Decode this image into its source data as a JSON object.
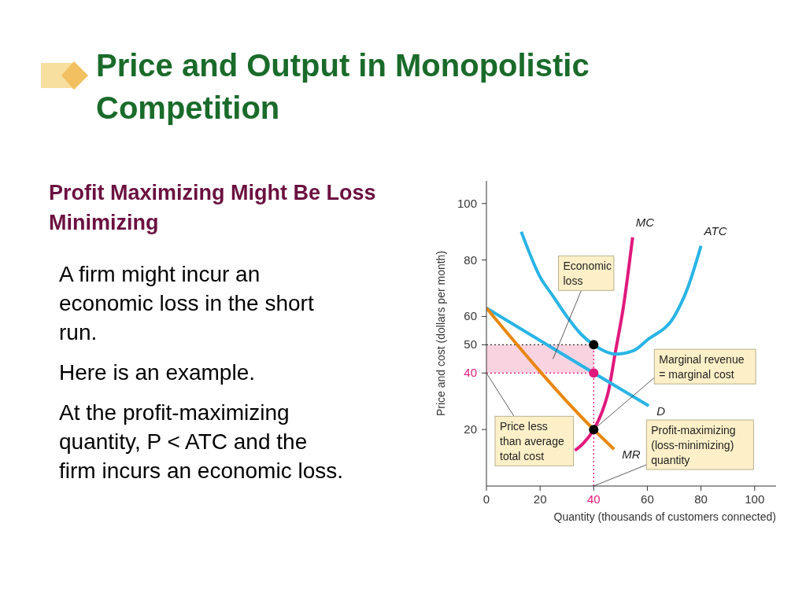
{
  "chart_data": {
    "type": "line",
    "title": "Price and Output in Monopolistic Competition",
    "subtitle": "Profit Maximizing Might Be Loss Minimizing",
    "xlabel": "Quantity (thousands of customers connected)",
    "ylabel": "Price and cost (dollars per month)",
    "xlim": [
      0,
      108
    ],
    "xticks": [
      0,
      20,
      40,
      60,
      80,
      100
    ],
    "ylim": [
      0,
      108
    ],
    "yticks": [
      20,
      40,
      50,
      60,
      80,
      100
    ],
    "grid": false,
    "legend": false,
    "line_style": "solid",
    "marker": "none",
    "series": [
      {
        "name": "MC",
        "color": "#e0197d",
        "x": [
          33,
          36,
          40,
          43,
          45.6,
          48,
          51,
          54.5
        ],
        "values": [
          12.6,
          15,
          20,
          26,
          34,
          47,
          63,
          88
        ]
      },
      {
        "name": "ATC",
        "color": "#29b4e6",
        "x": [
          13,
          20,
          25,
          30,
          35,
          40,
          48,
          55,
          60,
          70,
          75,
          80
        ],
        "values": [
          90,
          74,
          67,
          60,
          54,
          50,
          46.7,
          48,
          51.7,
          60,
          70,
          85
        ]
      },
      {
        "name": "D",
        "color": "#29b4e6",
        "x": [
          0,
          40,
          60.5
        ],
        "values": [
          63,
          40,
          28.4
        ]
      },
      {
        "name": "MR",
        "color": "#e8870e",
        "x": [
          0,
          40,
          47.6
        ],
        "values": [
          63,
          20,
          13
        ]
      },
      {
        "type": "scatter",
        "marker": "circle",
        "x": [
          40,
          40,
          40
        ],
        "values": [
          50,
          40,
          20
        ],
        "colors": [
          "#000000",
          "#e0197d",
          "#000000"
        ]
      }
    ],
    "ref_lines": [
      {
        "axis": "y",
        "value": 50,
        "color": "#333333",
        "line_style": "dotted"
      },
      {
        "axis": "y",
        "value": 40,
        "color": "#e0197d",
        "line_style": "dotted",
        "label": "Price less than average total cost"
      },
      {
        "axis": "x",
        "value": 40,
        "color": "#e0197d",
        "line_style": "dotted",
        "label": "Profit-maximizing (loss-minimizing) quantity"
      }
    ],
    "bands": [
      {
        "axis": "y",
        "from": 40,
        "to": 50,
        "color": "#f9d3e0",
        "label": "Economic loss"
      }
    ],
    "annotations": [
      "A firm might incur an economic loss in the short run.",
      "Here is an example.",
      "At the profit-maximizing quantity, P < ATC and the firm incurs an economic loss.",
      {
        "text": "Marginal revenue = marginal cost",
        "x": 40,
        "y": 20
      }
    ]
  }
}
